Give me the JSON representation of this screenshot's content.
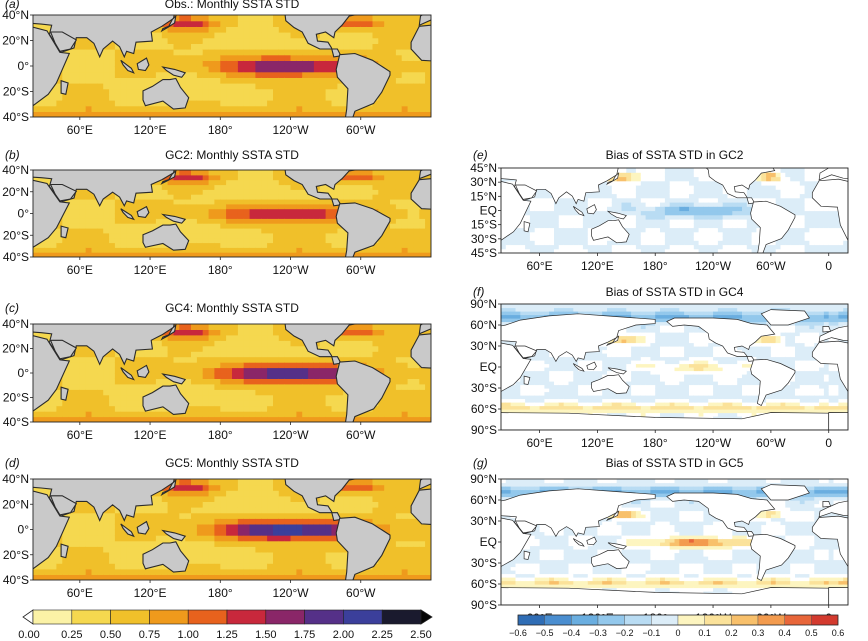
{
  "chart_data": [
    {
      "type": "heatmap",
      "panel_label": "(a)",
      "title": "Obs.: Monthly SSTA STD",
      "lat_ticks": [
        "40°N",
        "20°N",
        "0°",
        "20°S",
        "40°S"
      ],
      "lon_ticks": [
        "60°E",
        "120°E",
        "180°",
        "120°W",
        "60°W"
      ],
      "lat_range": [
        -45,
        45
      ],
      "lon_range": [
        20,
        360
      ],
      "scale": "std",
      "equatorial_peak": 1.25
    },
    {
      "type": "heatmap",
      "panel_label": "(b)",
      "title": "GC2: Monthly SSTA STD",
      "lat_ticks": [
        "40°N",
        "20°N",
        "0°",
        "20°S",
        "40°S"
      ],
      "lon_ticks": [
        "60°E",
        "120°E",
        "180°",
        "120°W",
        "60°W"
      ],
      "lat_range": [
        -45,
        45
      ],
      "lon_range": [
        20,
        360
      ],
      "scale": "std",
      "equatorial_peak": 1.0
    },
    {
      "type": "heatmap",
      "panel_label": "(c)",
      "title": "GC4: Monthly SSTA STD",
      "lat_ticks": [
        "40°N",
        "20°N",
        "0°",
        "20°S",
        "40°S"
      ],
      "lon_ticks": [
        "60°E",
        "120°E",
        "180°",
        "120°W",
        "60°W"
      ],
      "lat_range": [
        -45,
        45
      ],
      "lon_range": [
        20,
        360
      ],
      "scale": "std",
      "equatorial_peak": 1.5
    },
    {
      "type": "heatmap",
      "panel_label": "(d)",
      "title": "GC5: Monthly SSTA STD",
      "lat_ticks": [
        "40°N",
        "20°N",
        "0°",
        "20°S",
        "40°S"
      ],
      "lon_ticks": [
        "60°E",
        "120°E",
        "180°",
        "120°W",
        "60°W"
      ],
      "lat_range": [
        -45,
        45
      ],
      "lon_range": [
        20,
        360
      ],
      "scale": "std",
      "equatorial_peak": 1.75
    },
    {
      "type": "heatmap",
      "panel_label": "(e)",
      "title": "Bias of SSTA STD in GC2",
      "lat_ticks": [
        "45°N",
        "30°N",
        "15°N",
        "EQ",
        "15°S",
        "30°S",
        "45°S"
      ],
      "lon_ticks": [
        "60°E",
        "120°E",
        "180°",
        "120°W",
        "60°W",
        "0"
      ],
      "lat_range": [
        -50,
        50
      ],
      "lon_range": [
        20,
        380
      ],
      "scale": "bias",
      "equatorial_bias": -0.3
    },
    {
      "type": "heatmap",
      "panel_label": "(f)",
      "title": "Bias of SSTA STD in GC4",
      "lat_ticks": [
        "90°N",
        "60°N",
        "30°N",
        "EQ",
        "30°S",
        "60°S",
        "90°S"
      ],
      "lon_ticks": [
        "60°E",
        "120°E",
        "180°",
        "120°W",
        "60°W",
        "0"
      ],
      "lat_range": [
        -90,
        90
      ],
      "lon_range": [
        20,
        380
      ],
      "scale": "bias",
      "equatorial_bias": 0.2
    },
    {
      "type": "heatmap",
      "panel_label": "(g)",
      "title": "Bias of SSTA STD in GC5",
      "lat_ticks": [
        "90°N",
        "60°N",
        "30°N",
        "EQ",
        "30°S",
        "60°S",
        "90°S"
      ],
      "lon_ticks": [
        "60°E",
        "120°E",
        "180°",
        "120°W",
        "60°W",
        "0"
      ],
      "lat_range": [
        -90,
        90
      ],
      "lon_range": [
        20,
        380
      ],
      "scale": "bias",
      "equatorial_bias": 0.5
    }
  ],
  "std_colorbar": {
    "ticks": [
      "0.00",
      "0.25",
      "0.50",
      "0.75",
      "1.00",
      "1.25",
      "1.50",
      "1.75",
      "2.00",
      "2.25",
      "2.50"
    ],
    "colors": [
      "#ffffff",
      "#fbf2a6",
      "#f5d84f",
      "#f0c02a",
      "#ef9a1c",
      "#e8621d",
      "#c8283c",
      "#8a2668",
      "#553088",
      "#3b3f9b",
      "#1a1a2e",
      "#050505"
    ]
  },
  "bias_colorbar": {
    "ticks": [
      "−0.6",
      "−0.5",
      "−0.4",
      "−0.3",
      "−0.2",
      "−0.1",
      "0",
      "0.1",
      "0.2",
      "0.3",
      "0.4",
      "0.5",
      "0.6"
    ],
    "colors": [
      "#2f6db5",
      "#4a8ed0",
      "#6aaee0",
      "#93c8ec",
      "#b9dcf3",
      "#dcedf8",
      "#ffffff",
      "#fdf5c0",
      "#fbe29a",
      "#f8c06b",
      "#f39b4e",
      "#e8663a",
      "#d33a2e"
    ]
  },
  "colors": {
    "land": "#c9c9c9",
    "coast": "#2b2b2b",
    "ocean_base": "#f2cc46"
  }
}
